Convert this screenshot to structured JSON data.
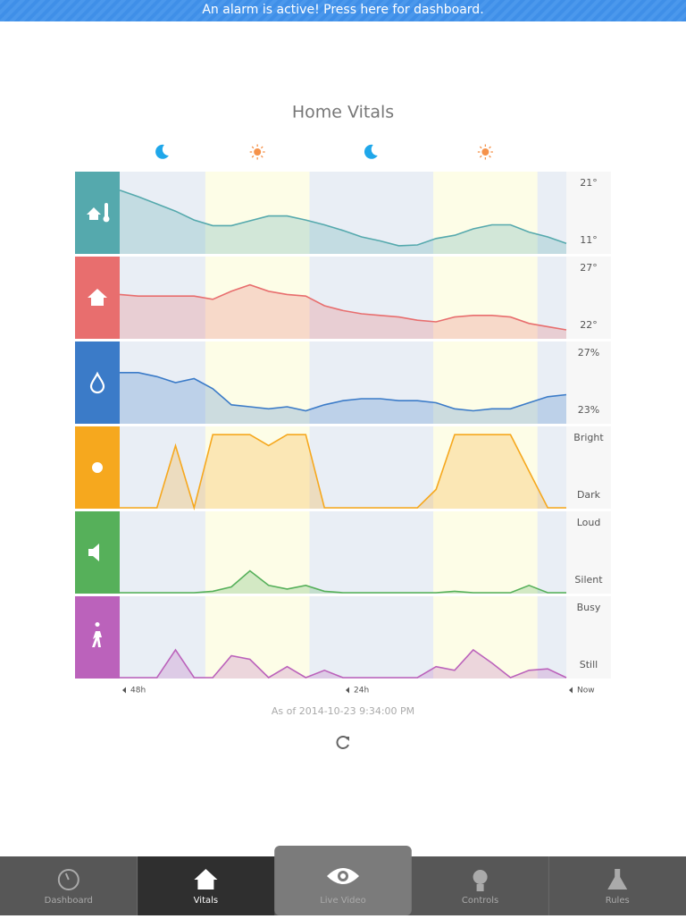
{
  "banner": "An alarm is active! Press here for dashboard.",
  "title": "Home Vitals",
  "day_periods": [
    [
      -38.8,
      -27.6
    ],
    [
      -14.3,
      -3.1
    ]
  ],
  "chart_data": [
    {
      "type": "area",
      "x": [
        -48,
        -46,
        -44,
        -42,
        -40,
        -38,
        -36,
        -34,
        -32,
        -30,
        -28,
        -26,
        -24,
        -22,
        -20,
        -18,
        -16,
        -14,
        -12,
        -10,
        -8,
        -6,
        -4,
        -2,
        0
      ],
      "ylim": [
        11,
        21
      ],
      "yticks": [
        {
          "value": 21,
          "label": "21°"
        },
        {
          "value": 11,
          "label": "11°"
        }
      ],
      "series": [
        {
          "color": "#55a9ad",
          "values": [
            18.8,
            18.0,
            17.1,
            16.2,
            15.1,
            14.4,
            14.4,
            15.0,
            15.6,
            15.6,
            15.1,
            14.5,
            13.8,
            13.0,
            12.5,
            11.9,
            12.0,
            12.8,
            13.2,
            14.0,
            14.5,
            14.5,
            13.6,
            13.0,
            12.2
          ]
        }
      ]
    },
    {
      "type": "area",
      "x": [
        -48,
        -46,
        -44,
        -42,
        -40,
        -38,
        -36,
        -34,
        -32,
        -30,
        -28,
        -26,
        -24,
        -22,
        -20,
        -18,
        -16,
        -14,
        -12,
        -10,
        -8,
        -6,
        -4,
        -2,
        0
      ],
      "ylim": [
        22,
        27
      ],
      "yticks": [
        {
          "value": 27,
          "label": "27°"
        },
        {
          "value": 22,
          "label": "22°"
        }
      ],
      "series": [
        {
          "color": "#e86e6e",
          "values": [
            24.7,
            24.6,
            24.6,
            24.6,
            24.6,
            24.4,
            24.9,
            25.3,
            24.9,
            24.7,
            24.6,
            24.0,
            23.7,
            23.5,
            23.4,
            23.3,
            23.1,
            23.0,
            23.3,
            23.4,
            23.4,
            23.3,
            22.9,
            22.7,
            22.5
          ]
        }
      ]
    },
    {
      "type": "area",
      "x": [
        -48,
        -46,
        -44,
        -42,
        -40,
        -38,
        -36,
        -34,
        -32,
        -30,
        -28,
        -26,
        -24,
        -22,
        -20,
        -18,
        -16,
        -14,
        -12,
        -10,
        -8,
        -6,
        -4,
        -2,
        0
      ],
      "ylim": [
        23,
        27
      ],
      "yticks": [
        {
          "value": 27,
          "label": "27%"
        },
        {
          "value": 23,
          "label": "23%"
        }
      ],
      "series": [
        {
          "color": "#3b7bc8",
          "values": [
            25.5,
            25.5,
            25.3,
            25.0,
            25.2,
            24.7,
            23.9,
            23.8,
            23.7,
            23.8,
            23.6,
            23.9,
            24.1,
            24.2,
            24.2,
            24.1,
            24.1,
            24.0,
            23.7,
            23.6,
            23.7,
            23.7,
            24.0,
            24.3,
            24.4
          ]
        }
      ]
    },
    {
      "type": "area",
      "x": [
        -48,
        -46,
        -44,
        -42,
        -40,
        -38,
        -36,
        -34,
        -32,
        -30,
        -28,
        -26,
        -24,
        -22,
        -20,
        -18,
        -16,
        -14,
        -12,
        -10,
        -8,
        -6,
        -4,
        -2,
        0
      ],
      "ylim": [
        0,
        1.1
      ],
      "yticks": [
        {
          "value": 1.1,
          "label": "Bright"
        },
        {
          "value": 0,
          "label": "Dark"
        }
      ],
      "series": [
        {
          "color": "#f6a81e",
          "values": [
            0,
            0,
            0,
            0.85,
            0,
            1,
            1,
            1,
            0.85,
            1,
            1,
            0,
            0,
            0,
            0,
            0,
            0,
            0.25,
            1,
            1,
            1,
            1,
            0.5,
            0,
            0
          ]
        }
      ]
    },
    {
      "type": "area",
      "x": [
        -48,
        -46,
        -44,
        -42,
        -40,
        -38,
        -36,
        -34,
        -32,
        -30,
        -28,
        -26,
        -24,
        -22,
        -20,
        -18,
        -16,
        -14,
        -12,
        -10,
        -8,
        -6,
        -4,
        -2,
        0
      ],
      "ylim": [
        0,
        1.1
      ],
      "yticks": [
        {
          "value": 1.1,
          "label": "Loud"
        },
        {
          "value": 0,
          "label": "Silent"
        }
      ],
      "series": [
        {
          "color": "#56b05a",
          "values": [
            0,
            0,
            0,
            0,
            0,
            0.02,
            0.08,
            0.3,
            0.1,
            0.05,
            0.1,
            0.02,
            0,
            0,
            0,
            0,
            0,
            0,
            0.02,
            0,
            0,
            0,
            0.1,
            0,
            0
          ]
        }
      ]
    },
    {
      "type": "area",
      "x": [
        -48,
        -46,
        -44,
        -42,
        -40,
        -38,
        -36,
        -34,
        -32,
        -30,
        -28,
        -26,
        -24,
        -22,
        -20,
        -18,
        -16,
        -14,
        -12,
        -10,
        -8,
        -6,
        -4,
        -2,
        0
      ],
      "ylim": [
        0,
        1.1
      ],
      "yticks": [
        {
          "value": 1.1,
          "label": "Busy"
        },
        {
          "value": 0,
          "label": "Still"
        }
      ],
      "xlim": [
        -48,
        0
      ],
      "xticks": [
        {
          "value": -48,
          "label": "48h"
        },
        {
          "value": -24,
          "label": "24h"
        },
        {
          "value": 0,
          "label": "Now"
        }
      ],
      "series": [
        {
          "color": "#bb62bb",
          "values": [
            0,
            0,
            0,
            0.38,
            0,
            0,
            0.3,
            0.25,
            0,
            0.15,
            0,
            0.1,
            0,
            0,
            0,
            0,
            0,
            0.15,
            0.1,
            0.38,
            0.2,
            0,
            0.1,
            0.12,
            0
          ]
        }
      ]
    }
  ],
  "as_of": "As of 2014-10-23 9:34:00 PM",
  "tabs": [
    "Dashboard",
    "Vitals",
    "Live Video",
    "Controls",
    "Rules"
  ]
}
